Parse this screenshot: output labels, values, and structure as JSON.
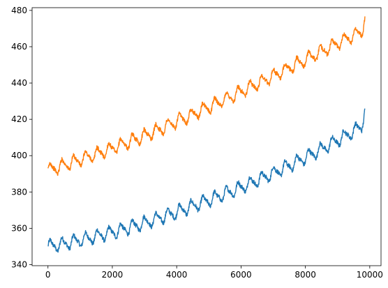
{
  "chart_data": {
    "type": "line",
    "title": "",
    "xlabel": "",
    "ylabel": "",
    "xlim": [
      -493,
      10350
    ],
    "ylim": [
      339.4,
      481.5
    ],
    "x_ticks": [
      0,
      2000,
      4000,
      6000,
      8000,
      10000
    ],
    "x_tick_labels": [
      "0",
      "2000",
      "4000",
      "6000",
      "8000",
      "10000"
    ],
    "y_ticks": [
      340,
      360,
      380,
      400,
      420,
      440,
      460,
      480
    ],
    "y_tick_labels": [
      "340",
      "360",
      "380",
      "400",
      "420",
      "440",
      "460",
      "480"
    ],
    "grid": false,
    "legend": "none",
    "series": [
      {
        "color": "#1f77b4",
        "x": [
          0,
          250,
          500,
          750,
          1000,
          1250,
          1500,
          1750,
          2000,
          2250,
          2500,
          2750,
          3000,
          3250,
          3500,
          3750,
          4000,
          4250,
          4500,
          4750,
          5000,
          5250,
          5500,
          5750,
          6000,
          6250,
          6500,
          6750,
          7000,
          7250,
          7500,
          7750,
          8000,
          8250,
          8500,
          8750,
          9000,
          9250,
          9500,
          9750,
          9850
        ],
        "y": [
          350,
          350.6,
          351.5,
          352.5,
          353.5,
          354.5,
          355.5,
          356.6,
          357.8,
          359,
          360.3,
          361.6,
          363,
          364.4,
          365.9,
          367.4,
          369,
          370.6,
          372.2,
          373.8,
          375.5,
          377.2,
          379,
          380.8,
          382.6,
          384.5,
          386.4,
          388.4,
          390.4,
          392.4,
          394.6,
          396.8,
          399,
          401.3,
          403.6,
          406,
          408.5,
          411,
          413.6,
          416,
          427
        ]
      },
      {
        "color": "#ff7f0e",
        "x": [
          0,
          250,
          500,
          750,
          1000,
          1250,
          1500,
          1750,
          2000,
          2250,
          2500,
          2750,
          3000,
          3250,
          3500,
          3750,
          4000,
          4250,
          4500,
          4750,
          5000,
          5250,
          5500,
          5750,
          6000,
          6250,
          6500,
          6750,
          7000,
          7250,
          7500,
          7750,
          8000,
          8250,
          8500,
          8750,
          9000,
          9250,
          9500,
          9750,
          9850
        ],
        "y": [
          392,
          393.3,
          394.8,
          396.3,
          397.8,
          399.3,
          400.8,
          402.4,
          404,
          405.7,
          407.4,
          409.2,
          411,
          412.9,
          414.8,
          416.8,
          418.8,
          420.8,
          422.8,
          424.8,
          426.8,
          428.9,
          431,
          433.1,
          435.3,
          437.4,
          439.6,
          441.8,
          444,
          446.2,
          448.4,
          450.6,
          452.9,
          455.1,
          457.4,
          459.6,
          461.9,
          464.2,
          466.5,
          468,
          477
        ]
      }
    ]
  }
}
